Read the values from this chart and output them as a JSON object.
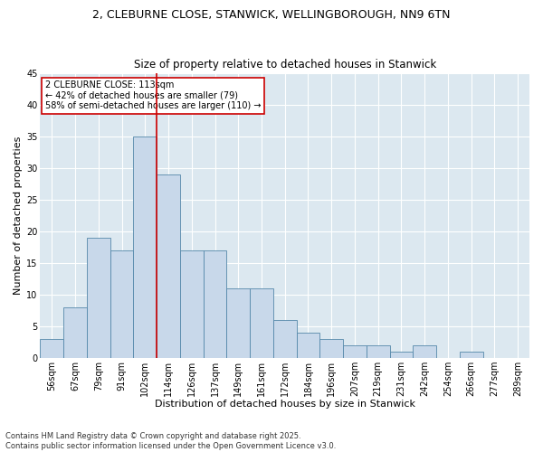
{
  "title1": "2, CLEBURNE CLOSE, STANWICK, WELLINGBOROUGH, NN9 6TN",
  "title2": "Size of property relative to detached houses in Stanwick",
  "xlabel": "Distribution of detached houses by size in Stanwick",
  "ylabel": "Number of detached properties",
  "categories": [
    "56sqm",
    "67sqm",
    "79sqm",
    "91sqm",
    "102sqm",
    "114sqm",
    "126sqm",
    "137sqm",
    "149sqm",
    "161sqm",
    "172sqm",
    "184sqm",
    "196sqm",
    "207sqm",
    "219sqm",
    "231sqm",
    "242sqm",
    "254sqm",
    "266sqm",
    "277sqm",
    "289sqm"
  ],
  "values": [
    3,
    8,
    19,
    17,
    35,
    29,
    17,
    17,
    11,
    11,
    6,
    4,
    3,
    2,
    2,
    1,
    2,
    0,
    1,
    0,
    0
  ],
  "bar_color": "#c8d8ea",
  "bar_edge_color": "#5588aa",
  "vline_x": 4.5,
  "vline_color": "#cc0000",
  "annotation_text": "2 CLEBURNE CLOSE: 113sqm\n← 42% of detached houses are smaller (79)\n58% of semi-detached houses are larger (110) →",
  "annotation_box_color": "#ffffff",
  "annotation_box_edge": "#cc0000",
  "ylim": [
    0,
    45
  ],
  "yticks": [
    0,
    5,
    10,
    15,
    20,
    25,
    30,
    35,
    40,
    45
  ],
  "background_color": "#dce8f0",
  "footer": "Contains HM Land Registry data © Crown copyright and database right 2025.\nContains public sector information licensed under the Open Government Licence v3.0.",
  "title_fontsize": 9,
  "subtitle_fontsize": 8.5,
  "axis_label_fontsize": 8,
  "tick_fontsize": 7,
  "annotation_fontsize": 7,
  "footer_fontsize": 6
}
